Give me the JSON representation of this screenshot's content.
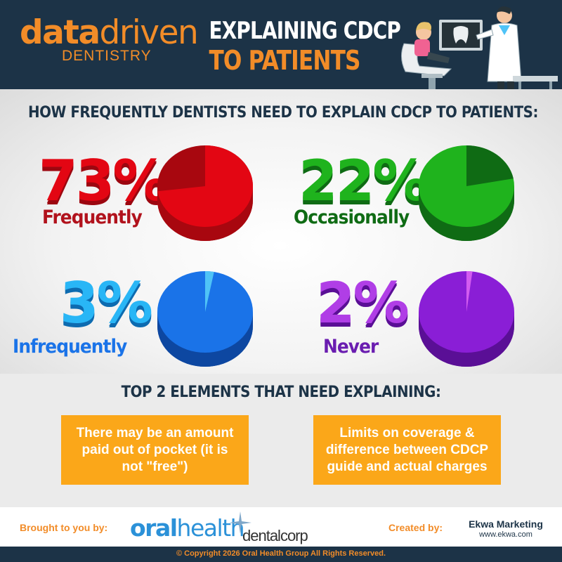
{
  "header": {
    "logo_data": "data",
    "logo_driven": "driven",
    "logo_sub": "DENTISTRY",
    "title_line1": "EXPLAINING CDCP",
    "title_line2": "TO PATIENTS"
  },
  "section1": {
    "title": "HOW FREQUENTLY DENTISTS NEED TO EXPLAIN CDCP TO PATIENTS:"
  },
  "chart_data": {
    "type": "pie",
    "title": "HOW FREQUENTLY DENTISTS NEED TO EXPLAIN CDCP TO PATIENTS:",
    "unit": "%",
    "slices": [
      {
        "label": "Frequently",
        "value": 73,
        "display": "73%",
        "color": "#e30613",
        "dark": "#a8070f"
      },
      {
        "label": "Occasionally",
        "value": 22,
        "display": "22%",
        "color": "#1fb31d",
        "dark": "#0f6b14"
      },
      {
        "label": "Infrequently",
        "value": 3,
        "display": "3%",
        "color": "#1a73e8",
        "dark": "#0d47a1",
        "light": "#4fc3f7"
      },
      {
        "label": "Never",
        "value": 2,
        "display": "2%",
        "color": "#8a1ed6",
        "dark": "#5a0f96",
        "light": "#d35cf0"
      }
    ]
  },
  "section2": {
    "title": "TOP 2 ELEMENTS THAT NEED EXPLAINING:",
    "box1": "There may be an amount paid  out of pocket (it is not \"free\")",
    "box2": "Limits on coverage & difference between CDCP guide and actual charges"
  },
  "footer": {
    "brought_by": "Brought to you by:",
    "oral": "oral",
    "health": "health",
    "dentalcorp": "dentalcorp",
    "created_by": "Created by:",
    "ekwa_name": "Ekwa Marketing",
    "ekwa_url": "www.ekwa.com",
    "copyright": "© Copyright 2026 Oral Health Group All Rights Reserved."
  },
  "colors": {
    "navy": "#1c3347",
    "orange": "#f28c28",
    "box_orange": "#fba719"
  }
}
